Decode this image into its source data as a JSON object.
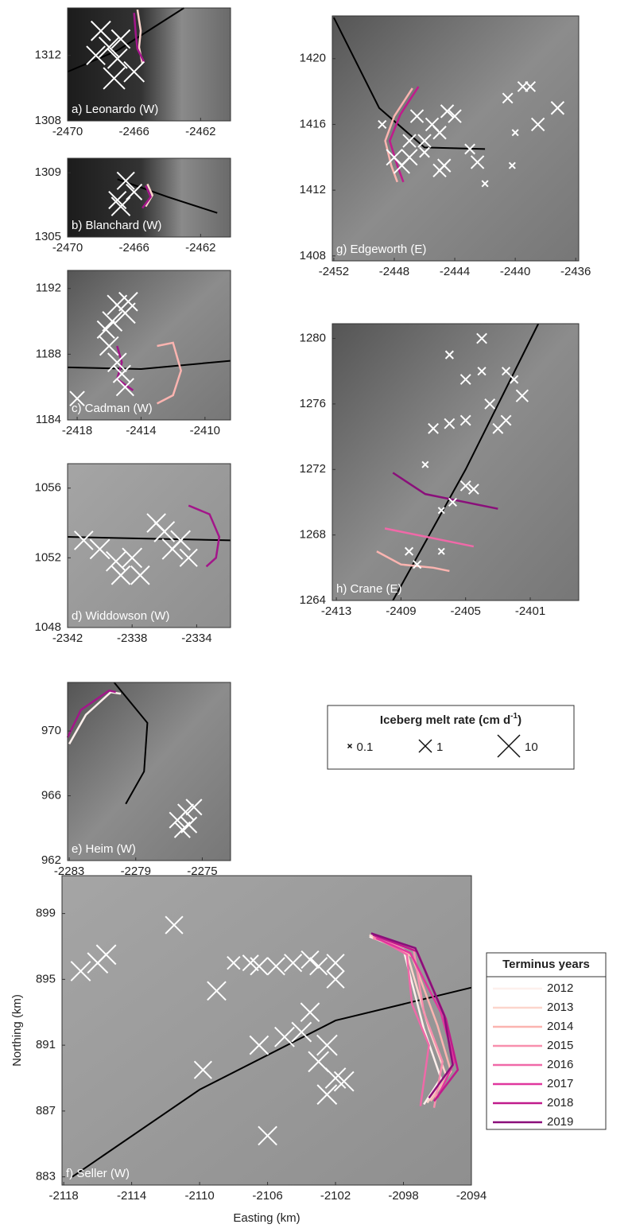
{
  "chart_data": [
    {
      "type": "scatter",
      "title": "a) Leonardo (W)",
      "xlim": [
        -2470,
        -2460.2
      ],
      "ylim": [
        1308,
        1314.9
      ],
      "xticks": [
        -2470,
        -2466,
        -2462
      ],
      "yticks": [
        1308,
        1312
      ],
      "points": {
        "x": [
          -2468,
          -2467.5,
          -2466.8,
          -2467,
          -2466,
          -2468.3,
          -2467.2
        ],
        "y": [
          1313.5,
          1312.5,
          1313,
          1311.8,
          1311,
          1312,
          1310.6
        ],
        "size": [
          5,
          6,
          4,
          5,
          6,
          4,
          8
        ]
      },
      "flowline": {
        "x": [
          -2470,
          -2467,
          -2463
        ],
        "y": [
          1311,
          1312.3,
          1314.9
        ]
      },
      "series": [
        {
          "name": "2012",
          "color": "#fcd5cc",
          "x": [
            -2465.8,
            -2465.6,
            -2465.7,
            -2465.5
          ],
          "y": [
            1314.8,
            1313.5,
            1312.5,
            1311.5
          ]
        },
        {
          "name": "2019",
          "color": "#a3168a",
          "x": [
            -2466,
            -2465.9,
            -2465.8,
            -2465.4
          ],
          "y": [
            1314.6,
            1313.3,
            1312.4,
            1311.6
          ]
        }
      ]
    },
    {
      "type": "scatter",
      "title": "b) Blanchard (W)",
      "xlim": [
        -2470,
        -2460.2
      ],
      "ylim": [
        1305,
        1309.9
      ],
      "xticks": [
        -2470,
        -2466,
        -2462
      ],
      "yticks": [
        1305,
        1309
      ],
      "points": {
        "x": [
          -2466.5,
          -2467,
          -2466,
          -2466.8
        ],
        "y": [
          1308.5,
          1307.3,
          1307.8,
          1306.9
        ],
        "size": [
          3,
          3,
          2,
          4
        ]
      },
      "flowline": {
        "x": [
          -2467,
          -2464,
          -2461
        ],
        "y": [
          1308.6,
          1307.5,
          1306.5
        ]
      },
      "series": [
        {
          "name": "2012",
          "color": "#fcd5cc",
          "x": [
            -2465.2,
            -2464.9,
            -2465.3
          ],
          "y": [
            1308.3,
            1307.6,
            1306.9
          ]
        },
        {
          "name": "2019",
          "color": "#a3168a",
          "x": [
            -2465.3,
            -2465,
            -2465.5
          ],
          "y": [
            1308.2,
            1307.5,
            1306.8
          ]
        }
      ]
    },
    {
      "type": "scatter",
      "title": "c) Cadman (W)",
      "xlim": [
        -2418.6,
        -2408.4
      ],
      "ylim": [
        1184,
        1193.1
      ],
      "xticks": [
        -2418,
        -2414,
        -2410
      ],
      "yticks": [
        1184,
        1188,
        1192
      ],
      "points": {
        "x": [
          -2415.5,
          -2415,
          -2415.8,
          -2414.8,
          -2416,
          -2415.5,
          -2415.2,
          -2415,
          -2418,
          -2416.2
        ],
        "y": [
          1191,
          1190.5,
          1190,
          1191.2,
          1188.5,
          1187.5,
          1186.8,
          1186,
          1185.3,
          1189.5
        ],
        "size": [
          5,
          6,
          5,
          4,
          4,
          4,
          3,
          3,
          1.5,
          3
        ]
      },
      "flowline": {
        "x": [
          -2418.6,
          -2414,
          -2408.4
        ],
        "y": [
          1187.2,
          1187.1,
          1187.6
        ]
      },
      "series": [
        {
          "name": "2012",
          "color": "#fbb4b0",
          "x": [
            -2413,
            -2412,
            -2411.5,
            -2412,
            -2413
          ],
          "y": [
            1188.5,
            1188.7,
            1187,
            1185.5,
            1185
          ]
        },
        {
          "name": "2019",
          "color": "#a3168a",
          "x": [
            -2415.5,
            -2415.2,
            -2415.5,
            -2414.5
          ],
          "y": [
            1188.5,
            1187.5,
            1186.5,
            1185.8
          ]
        }
      ]
    },
    {
      "type": "scatter",
      "title": "d) Widdowson (W)",
      "xlim": [
        -2342,
        -2331.9
      ],
      "ylim": [
        1048,
        1057.4
      ],
      "xticks": [
        -2342,
        -2338,
        -2334
      ],
      "yticks": [
        1048,
        1052,
        1056
      ],
      "points": {
        "x": [
          -2341,
          -2340,
          -2339,
          -2338,
          -2337.5,
          -2336,
          -2335.5,
          -2335,
          -2334.5,
          -2336.5,
          -2338.7
        ],
        "y": [
          1053,
          1052.5,
          1051.8,
          1052,
          1051,
          1053.5,
          1052.5,
          1053,
          1052,
          1054,
          1051
        ],
        "size": [
          4,
          5,
          5,
          5,
          4,
          6,
          6,
          5,
          3,
          4,
          4
        ]
      },
      "flowline": {
        "x": [
          -2342,
          -2337,
          -2331.9
        ],
        "y": [
          1053.2,
          1053.1,
          1053
        ]
      },
      "series": [
        {
          "name": "2019",
          "color": "#a3168a",
          "x": [
            -2334.5,
            -2333.2,
            -2332.6,
            -2332.8,
            -2333.4
          ],
          "y": [
            1055,
            1054.5,
            1053.2,
            1052,
            1051.5
          ]
        }
      ]
    },
    {
      "type": "scatter",
      "title": "e) Heim (W)",
      "xlim": [
        -2283.1,
        -2273.3
      ],
      "ylim": [
        962,
        973
      ],
      "xticks": [
        -2283,
        -2279,
        -2275
      ],
      "yticks": [
        962,
        966,
        970
      ],
      "points": {
        "x": [
          -2276.5,
          -2276,
          -2275.8,
          -2276.2,
          -2275.5
        ],
        "y": [
          964.5,
          965,
          964.2,
          963.9,
          965.3
        ],
        "size": [
          2,
          2,
          2,
          2,
          2
        ]
      },
      "flowline": {
        "x": [
          -2280.3,
          -2278.3,
          -2278.5,
          -2279.6
        ],
        "y": [
          973,
          970.5,
          967.5,
          965.5
        ]
      },
      "series": [
        {
          "name": "2012",
          "color": "#fdf0ec",
          "x": [
            -2283,
            -2282,
            -2280.5,
            -2279.9
          ],
          "y": [
            969.2,
            971,
            972.4,
            972.3
          ]
        },
        {
          "name": "2019",
          "color": "#a3168a",
          "x": [
            -2283.1,
            -2282.3,
            -2280.6,
            -2280.2
          ],
          "y": [
            969.6,
            971.3,
            972.5,
            972.4
          ]
        }
      ]
    },
    {
      "type": "scatter",
      "title": "f) Seller (W)",
      "x_label": "Easting (km)",
      "y_label": "Northing (km)",
      "xlim": [
        -2118.1,
        -2094
      ],
      "ylim": [
        882.5,
        901.3
      ],
      "xticks": [
        -2118,
        -2114,
        -2110,
        -2106,
        -2102,
        -2098,
        -2094
      ],
      "yticks": [
        883,
        887,
        891,
        895,
        899
      ],
      "points": {
        "x": [
          -2117,
          -2116,
          -2115.5,
          -2111.5,
          -2109,
          -2109.8,
          -2108,
          -2107,
          -2106.5,
          -2105.5,
          -2104.5,
          -2103.5,
          -2103,
          -2102,
          -2102,
          -2103.5,
          -2104,
          -2105,
          -2106.5,
          -2102.5,
          -2103,
          -2102,
          -2101.5,
          -2102.5,
          -2106
        ],
        "y": [
          895.5,
          896,
          896.5,
          898.3,
          894.3,
          889.5,
          896,
          896,
          895.8,
          895.8,
          896,
          896.2,
          895.8,
          896,
          895,
          893,
          891.8,
          891.5,
          891,
          891,
          890,
          889,
          888.8,
          888,
          885.5
        ],
        "size": [
          5,
          6,
          5,
          3,
          4,
          3,
          1,
          2,
          3,
          3,
          3,
          3,
          3,
          3,
          3,
          4,
          5,
          5,
          4,
          6,
          6,
          6,
          5,
          5,
          4
        ]
      },
      "flowline": {
        "x": [
          -2117.5,
          -2110,
          -2102,
          -2094
        ],
        "y": [
          883,
          888.3,
          892.5,
          894.5
        ]
      },
      "series": [
        {
          "name": "2012",
          "color": "#fdf0ec",
          "x": [
            -2100,
            -2098,
            -2096.8,
            -2095.8,
            -2096.8
          ],
          "y": [
            897.6,
            896.8,
            892,
            889,
            887.4
          ]
        },
        {
          "name": "2013",
          "color": "#fcd5cc",
          "x": [
            -2100,
            -2097.8,
            -2096.5,
            -2095.5,
            -2096.6
          ],
          "y": [
            897.7,
            896.6,
            892,
            889.2,
            887.5
          ]
        },
        {
          "name": "2014",
          "color": "#fbb4b0",
          "x": [
            -2099.8,
            -2097.5,
            -2096,
            -2095.2,
            -2096.4
          ],
          "y": [
            897.6,
            896.4,
            892.2,
            889.4,
            887.6
          ]
        },
        {
          "name": "2015",
          "color": "#f88fae",
          "x": [
            -2099.8,
            -2097.4,
            -2096.8,
            -2095.7,
            -2096.2
          ],
          "y": [
            897.5,
            896.8,
            893,
            890,
            887.2
          ]
        },
        {
          "name": "2016",
          "color": "#f069a8",
          "x": [
            -2099.7,
            -2097.8,
            -2097.5,
            -2096.5,
            -2097
          ],
          "y": [
            897.6,
            896.5,
            893.5,
            891,
            887.3
          ]
        },
        {
          "name": "2017",
          "color": "#e0379e",
          "x": [
            -2099.6,
            -2097.6,
            -2095.8,
            -2095,
            -2096
          ],
          "y": [
            897.5,
            896.6,
            893,
            890,
            887.8
          ]
        },
        {
          "name": "2018",
          "color": "#c01b8c",
          "x": [
            -2099.8,
            -2097.2,
            -2095.5,
            -2094.8,
            -2096.2
          ],
          "y": [
            897.7,
            896.7,
            892.6,
            889.5,
            887.6
          ]
        },
        {
          "name": "2019",
          "color": "#8a0f7a",
          "x": [
            -2099.9,
            -2097.3,
            -2095.6,
            -2095.1,
            -2096.5
          ],
          "y": [
            897.8,
            896.9,
            892.8,
            889.8,
            887.8
          ]
        }
      ]
    },
    {
      "type": "scatter",
      "title": "g) Edgeworth (E)",
      "xlim": [
        -2452.1,
        -2435.8
      ],
      "ylim": [
        1407.7,
        1422.6
      ],
      "xticks": [
        -2452,
        -2448,
        -2444,
        -2440,
        -2436
      ],
      "yticks": [
        1408,
        1412,
        1416,
        1420
      ],
      "points": {
        "x": [
          -2448,
          -2447.5,
          -2447,
          -2446,
          -2445.5,
          -2445,
          -2446.5,
          -2447,
          -2444.5,
          -2444,
          -2444.7,
          -2445,
          -2443,
          -2442.5,
          -2442,
          -2440.5,
          -2440,
          -2440.2,
          -2439.5,
          -2439,
          -2438.5,
          -2437.2,
          -2448.8,
          -2446
        ],
        "y": [
          1414,
          1413.5,
          1414,
          1415,
          1416,
          1415.5,
          1416.5,
          1415,
          1416.8,
          1416.5,
          1413.5,
          1413.2,
          1414.5,
          1413.7,
          1412.4,
          1417.6,
          1415.5,
          1413.5,
          1418.3,
          1418.3,
          1416,
          1417,
          1416,
          1414.3
        ],
        "size": [
          2,
          2,
          2,
          1,
          1,
          1,
          1,
          1,
          1,
          1,
          1,
          1,
          0.5,
          1,
          0.2,
          0.5,
          0.2,
          0.2,
          0.5,
          0.5,
          1,
          1,
          0.3,
          0.5
        ]
      },
      "flowline": {
        "x": [
          -2452,
          -2449,
          -2446,
          -2442
        ],
        "y": [
          1422.5,
          1417,
          1414.6,
          1414.5
        ]
      },
      "series": [
        {
          "name": "2012",
          "color": "#fbb4b0",
          "x": [
            -2446.8,
            -2448,
            -2448.6,
            -2448.2,
            -2447.8
          ],
          "y": [
            1418.2,
            1416.5,
            1415,
            1413.5,
            1412.5
          ]
        },
        {
          "name": "2019",
          "color": "#c01b8c",
          "x": [
            -2446.4,
            -2447.6,
            -2448.3,
            -2447.8,
            -2447.4
          ],
          "y": [
            1418.3,
            1416.6,
            1415,
            1413.5,
            1412.5
          ]
        }
      ]
    },
    {
      "type": "scatter",
      "title": "h) Crane (E)",
      "xlim": [
        -2413.25,
        -2398
      ],
      "ylim": [
        1264,
        1280.9
      ],
      "xticks": [
        -2413,
        -2409,
        -2405,
        -2401
      ],
      "yticks": [
        1264,
        1268,
        1272,
        1276,
        1280
      ],
      "points": {
        "x": [
          -2404,
          -2406,
          -2405,
          -2404,
          -2402.5,
          -2402,
          -2403.5,
          -2401.5,
          -2405,
          -2403,
          -2402.5,
          -2406,
          -2407,
          -2407.5,
          -2405,
          -2404.5,
          -2406.5,
          -2408.5,
          -2408,
          -2406.5,
          -2405.8
        ],
        "y": [
          1280,
          1279,
          1277.5,
          1278,
          1278,
          1277.5,
          1276,
          1276.5,
          1275,
          1274.5,
          1275,
          1274.8,
          1274.5,
          1272.3,
          1271,
          1270.8,
          1269.5,
          1267,
          1266.2,
          1267,
          1270
        ],
        "size": [
          0.5,
          0.3,
          0.5,
          0.3,
          0.3,
          0.3,
          0.5,
          0.8,
          0.5,
          0.5,
          0.5,
          0.5,
          0.5,
          0.2,
          0.5,
          0.5,
          0.2,
          0.3,
          0.3,
          0.2,
          0.3
        ]
      },
      "flowline": {
        "x": [
          -2409.5,
          -2405,
          -2400.5
        ],
        "y": [
          1264,
          1272,
          1280.9
        ]
      },
      "series": [
        {
          "name": "2013",
          "color": "#fbb4b0",
          "x": [
            -2410.5,
            -2409,
            -2407,
            -2406
          ],
          "y": [
            1267,
            1266.2,
            1266,
            1265.8
          ]
        },
        {
          "name": "2016",
          "color": "#f069a8",
          "x": [
            -2410,
            -2408,
            -2405.5,
            -2404.5
          ],
          "y": [
            1268.4,
            1268,
            1267.5,
            1267.3
          ]
        },
        {
          "name": "2019",
          "color": "#8a0f7a",
          "x": [
            -2409.5,
            -2407.5,
            -2405,
            -2403
          ],
          "y": [
            1271.8,
            1270.5,
            1270,
            1269.6
          ]
        }
      ]
    }
  ],
  "melt_legend": {
    "title": "Iceberg melt rate (cm d",
    "title_sup": "-1",
    "title_end": ")",
    "sizes": [
      0.1,
      1,
      10
    ]
  },
  "terminus_legend": {
    "title": "Terminus years"
  }
}
